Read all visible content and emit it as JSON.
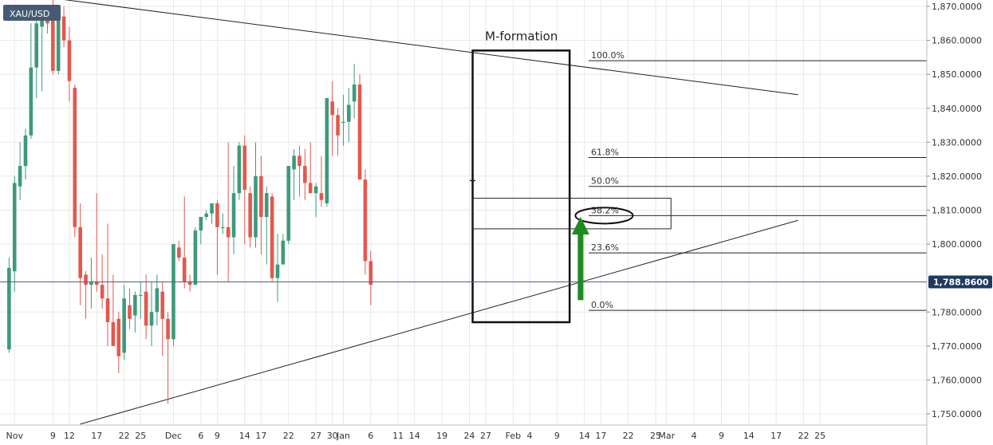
{
  "chart_data": {
    "type": "candlestick",
    "symbol": "XAU/USD",
    "title": "",
    "xlabel": "",
    "ylabel": "",
    "ylim": [
      1746,
      1872
    ],
    "grid": true,
    "current_price": 1788.86,
    "current_price_label": "1,788.8600",
    "y_ticks": [
      {
        "value": 1870,
        "label": "1,870.0000"
      },
      {
        "value": 1860,
        "label": "1,860.0000"
      },
      {
        "value": 1850,
        "label": "1,850.0000"
      },
      {
        "value": 1840,
        "label": "1,840.0000"
      },
      {
        "value": 1830,
        "label": "1,830.0000"
      },
      {
        "value": 1820,
        "label": "1,820.0000"
      },
      {
        "value": 1810,
        "label": "1,810.0000"
      },
      {
        "value": 1800,
        "label": "1,800.0000"
      },
      {
        "value": 1780,
        "label": "1,780.0000"
      },
      {
        "value": 1770,
        "label": "1,770.0000"
      },
      {
        "value": 1760,
        "label": "1,760.0000"
      },
      {
        "value": 1750,
        "label": "1,750.0000"
      }
    ],
    "x_ticks": [
      {
        "day": 2,
        "label": "Nov"
      },
      {
        "day": 9,
        "label": "9"
      },
      {
        "day": 12,
        "label": "12"
      },
      {
        "day": 17,
        "label": "17"
      },
      {
        "day": 22,
        "label": "22"
      },
      {
        "day": 25,
        "label": "25"
      },
      {
        "day": 31,
        "label": "Dec"
      },
      {
        "day": 36,
        "label": "6"
      },
      {
        "day": 39,
        "label": "9"
      },
      {
        "day": 44,
        "label": "14"
      },
      {
        "day": 47,
        "label": "17"
      },
      {
        "day": 52,
        "label": "22"
      },
      {
        "day": 57,
        "label": "27"
      },
      {
        "day": 60,
        "label": "30"
      },
      {
        "day": 62,
        "label": "Jan"
      },
      {
        "day": 67,
        "label": "6"
      },
      {
        "day": 72,
        "label": "11"
      },
      {
        "day": 75,
        "label": "14"
      },
      {
        "day": 80,
        "label": "19"
      },
      {
        "day": 85,
        "label": "24"
      },
      {
        "day": 88,
        "label": "27"
      },
      {
        "day": 93,
        "label": "Feb"
      },
      {
        "day": 96,
        "label": "4"
      },
      {
        "day": 101,
        "label": "9"
      },
      {
        "day": 106,
        "label": "14"
      },
      {
        "day": 109,
        "label": "17"
      },
      {
        "day": 114,
        "label": "22"
      },
      {
        "day": 119,
        "label": "25"
      },
      {
        "day": 121,
        "label": "Mar"
      },
      {
        "day": 126,
        "label": "4"
      },
      {
        "day": 131,
        "label": "9"
      },
      {
        "day": 136,
        "label": "14"
      },
      {
        "day": 141,
        "label": "17"
      },
      {
        "day": 146,
        "label": "22"
      },
      {
        "day": 149,
        "label": "25"
      }
    ],
    "candles": [
      {
        "day": 1,
        "open": 1769,
        "high": 1796,
        "low": 1768,
        "close": 1793
      },
      {
        "day": 2,
        "open": 1792,
        "high": 1820,
        "low": 1786,
        "close": 1818
      },
      {
        "day": 3,
        "open": 1817,
        "high": 1830,
        "low": 1813,
        "close": 1823
      },
      {
        "day": 4,
        "open": 1823,
        "high": 1834,
        "low": 1819,
        "close": 1832
      },
      {
        "day": 5,
        "open": 1832,
        "high": 1865,
        "low": 1831,
        "close": 1852
      },
      {
        "day": 6,
        "open": 1852,
        "high": 1868,
        "low": 1843,
        "close": 1865
      },
      {
        "day": 7,
        "open": 1864,
        "high": 1870,
        "low": 1845,
        "close": 1867
      },
      {
        "day": 8,
        "open": 1867,
        "high": 1870,
        "low": 1862,
        "close": 1865
      },
      {
        "day": 9,
        "open": 1866,
        "high": 1872,
        "low": 1850,
        "close": 1851
      },
      {
        "day": 10,
        "open": 1851,
        "high": 1869,
        "low": 1850,
        "close": 1867
      },
      {
        "day": 11,
        "open": 1867,
        "high": 1870,
        "low": 1858,
        "close": 1860
      },
      {
        "day": 12,
        "open": 1860,
        "high": 1864,
        "low": 1842,
        "close": 1848
      },
      {
        "day": 13,
        "open": 1846,
        "high": 1847,
        "low": 1802,
        "close": 1805
      },
      {
        "day": 14,
        "open": 1805,
        "high": 1812,
        "low": 1782,
        "close": 1790
      },
      {
        "day": 15,
        "open": 1791,
        "high": 1792,
        "low": 1778,
        "close": 1788
      },
      {
        "day": 16,
        "open": 1788,
        "high": 1796,
        "low": 1781,
        "close": 1789
      },
      {
        "day": 17,
        "open": 1789,
        "high": 1815,
        "low": 1786,
        "close": 1788
      },
      {
        "day": 18,
        "open": 1788,
        "high": 1797,
        "low": 1781,
        "close": 1784
      },
      {
        "day": 19,
        "open": 1784,
        "high": 1806,
        "low": 1770,
        "close": 1777
      },
      {
        "day": 20,
        "open": 1777,
        "high": 1791,
        "low": 1770,
        "close": 1770
      },
      {
        "day": 21,
        "open": 1778,
        "high": 1780,
        "low": 1762,
        "close": 1767
      },
      {
        "day": 22,
        "open": 1768,
        "high": 1788,
        "low": 1766,
        "close": 1784
      },
      {
        "day": 23,
        "open": 1782,
        "high": 1787,
        "low": 1775,
        "close": 1778
      },
      {
        "day": 24,
        "open": 1779,
        "high": 1786,
        "low": 1774,
        "close": 1785
      },
      {
        "day": 25,
        "open": 1785,
        "high": 1789,
        "low": 1778,
        "close": 1785
      },
      {
        "day": 26,
        "open": 1786,
        "high": 1791,
        "low": 1772,
        "close": 1776
      },
      {
        "day": 27,
        "open": 1776,
        "high": 1789,
        "low": 1770,
        "close": 1780
      },
      {
        "day": 28,
        "open": 1780,
        "high": 1791,
        "low": 1776,
        "close": 1787
      },
      {
        "day": 29,
        "open": 1786,
        "high": 1789,
        "low": 1767,
        "close": 1778
      },
      {
        "day": 30,
        "open": 1778,
        "high": 1780,
        "low": 1753,
        "close": 1772
      },
      {
        "day": 31,
        "open": 1772,
        "high": 1800,
        "low": 1770,
        "close": 1800
      },
      {
        "day": 32,
        "open": 1799,
        "high": 1801,
        "low": 1795,
        "close": 1796
      },
      {
        "day": 33,
        "open": 1796,
        "high": 1814,
        "low": 1787,
        "close": 1789
      },
      {
        "day": 34,
        "open": 1789,
        "high": 1791,
        "low": 1786,
        "close": 1788
      },
      {
        "day": 35,
        "open": 1788,
        "high": 1805,
        "low": 1788,
        "close": 1804
      },
      {
        "day": 36,
        "open": 1804,
        "high": 1808,
        "low": 1800,
        "close": 1808
      },
      {
        "day": 37,
        "open": 1808,
        "high": 1810,
        "low": 1807,
        "close": 1809
      },
      {
        "day": 38,
        "open": 1809,
        "high": 1812,
        "low": 1806,
        "close": 1812
      },
      {
        "day": 39,
        "open": 1812,
        "high": 1813,
        "low": 1791,
        "close": 1805
      },
      {
        "day": 40,
        "open": 1805,
        "high": 1809,
        "low": 1803,
        "close": 1805
      },
      {
        "day": 41,
        "open": 1805,
        "high": 1830,
        "low": 1789,
        "close": 1802
      },
      {
        "day": 42,
        "open": 1802,
        "high": 1823,
        "low": 1797,
        "close": 1815
      },
      {
        "day": 43,
        "open": 1815,
        "high": 1830,
        "low": 1813,
        "close": 1829
      },
      {
        "day": 44,
        "open": 1829,
        "high": 1832,
        "low": 1800,
        "close": 1816
      },
      {
        "day": 45,
        "open": 1815,
        "high": 1817,
        "low": 1799,
        "close": 1802
      },
      {
        "day": 46,
        "open": 1802,
        "high": 1830,
        "low": 1799,
        "close": 1820
      },
      {
        "day": 47,
        "open": 1820,
        "high": 1826,
        "low": 1797,
        "close": 1808
      },
      {
        "day": 48,
        "open": 1808,
        "high": 1817,
        "low": 1794,
        "close": 1815
      },
      {
        "day": 49,
        "open": 1814,
        "high": 1815,
        "low": 1789,
        "close": 1790
      },
      {
        "day": 50,
        "open": 1790,
        "high": 1803,
        "low": 1783,
        "close": 1794
      },
      {
        "day": 51,
        "open": 1794,
        "high": 1803,
        "low": 1794,
        "close": 1801
      },
      {
        "day": 52,
        "open": 1801,
        "high": 1823,
        "low": 1800,
        "close": 1823
      },
      {
        "day": 53,
        "open": 1822,
        "high": 1828,
        "low": 1813,
        "close": 1826
      },
      {
        "day": 54,
        "open": 1826,
        "high": 1829,
        "low": 1814,
        "close": 1823
      },
      {
        "day": 55,
        "open": 1823,
        "high": 1828,
        "low": 1813,
        "close": 1818
      },
      {
        "day": 56,
        "open": 1818,
        "high": 1830,
        "low": 1815,
        "close": 1815
      },
      {
        "day": 57,
        "open": 1815,
        "high": 1818,
        "low": 1808,
        "close": 1817
      },
      {
        "day": 58,
        "open": 1815,
        "high": 1826,
        "low": 1811,
        "close": 1813
      },
      {
        "day": 59,
        "open": 1812,
        "high": 1843,
        "low": 1811,
        "close": 1843
      },
      {
        "day": 60,
        "open": 1842,
        "high": 1848,
        "low": 1826,
        "close": 1838
      },
      {
        "day": 61,
        "open": 1838,
        "high": 1840,
        "low": 1826,
        "close": 1832
      },
      {
        "day": 62,
        "open": 1836,
        "high": 1844,
        "low": 1829,
        "close": 1836
      },
      {
        "day": 63,
        "open": 1836,
        "high": 1846,
        "low": 1830,
        "close": 1841
      },
      {
        "day": 64,
        "open": 1842,
        "high": 1853,
        "low": 1837,
        "close": 1847
      },
      {
        "day": 65,
        "open": 1847,
        "high": 1850,
        "low": 1819,
        "close": 1819
      },
      {
        "day": 66,
        "open": 1819,
        "high": 1822,
        "low": 1791,
        "close": 1795
      },
      {
        "day": 67,
        "open": 1795,
        "high": 1798,
        "low": 1782,
        "close": 1788
      }
    ],
    "fib_levels": [
      {
        "label": "100.0%",
        "value": 1854.0
      },
      {
        "label": "61.8%",
        "value": 1825.5
      },
      {
        "label": "50.0%",
        "value": 1817.0
      },
      {
        "label": "38.2%",
        "value": 1808.4
      },
      {
        "label": "23.6%",
        "value": 1797.4
      },
      {
        "label": "0.0%",
        "value": 1780.5
      }
    ],
    "annotations": [
      {
        "text": "M-formation"
      }
    ],
    "colors": {
      "up": "#3d9a7b",
      "down": "#e3584d",
      "wick_up": "#3d9a7b",
      "wick_down": "#e3584d",
      "grid": "#e8e8e8",
      "arrow": "#1e8b1e",
      "price_tag": "#1f3a5f",
      "symbol_tag": "#465a74"
    }
  }
}
